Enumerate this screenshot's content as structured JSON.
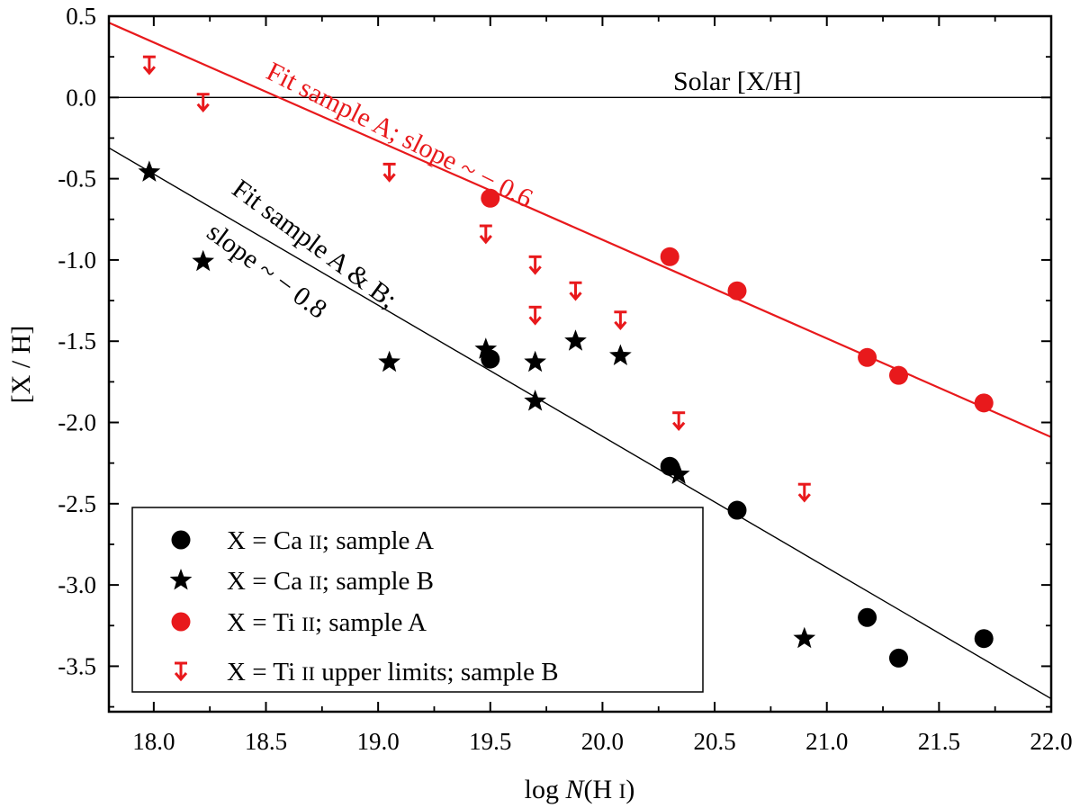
{
  "chart_data": {
    "type": "scatter",
    "xlabel": {
      "prefix": "log ",
      "italic": "N",
      "suffix": "(H ",
      "roman": "I",
      "close": ")"
    },
    "ylabel": "[X / H]",
    "xlim": [
      17.8,
      22.0
    ],
    "ylim": [
      -3.78,
      0.5
    ],
    "xticks": [
      18.0,
      18.5,
      19.0,
      19.5,
      20.0,
      20.5,
      21.0,
      21.5,
      22.0
    ],
    "xtick_labels": [
      "18.0",
      "18.5",
      "19.0",
      "19.5",
      "20.0",
      "20.5",
      "21.0",
      "21.5",
      "22.0"
    ],
    "yticks": [
      0.5,
      0.0,
      -0.5,
      -1.0,
      -1.5,
      -2.0,
      -2.5,
      -3.0,
      -3.5
    ],
    "ytick_labels": [
      "0.5",
      "0.0",
      "-0.5",
      "-1.0",
      "-1.5",
      "-2.0",
      "-2.5",
      "-3.0",
      "-3.5"
    ],
    "colors": {
      "black": "#000000",
      "red": "#e8191c"
    },
    "series": [
      {
        "name": "X = Ca II; sample A",
        "marker": "circle",
        "color": "#000000",
        "points": [
          [
            19.5,
            -1.61
          ],
          [
            20.3,
            -2.27
          ],
          [
            20.6,
            -2.54
          ],
          [
            21.18,
            -3.2
          ],
          [
            21.32,
            -3.45
          ],
          [
            21.7,
            -3.33
          ]
        ]
      },
      {
        "name": "X = Ca II; sample B",
        "marker": "star",
        "color": "#000000",
        "points": [
          [
            17.98,
            -0.46
          ],
          [
            18.22,
            -1.01
          ],
          [
            19.05,
            -1.63
          ],
          [
            19.48,
            -1.55
          ],
          [
            19.7,
            -1.63
          ],
          [
            19.7,
            -1.87
          ],
          [
            19.88,
            -1.5
          ],
          [
            20.08,
            -1.59
          ],
          [
            20.34,
            -2.32
          ],
          [
            20.9,
            -3.33
          ]
        ]
      },
      {
        "name": "X = Ti II; sample A",
        "marker": "circle",
        "color": "#e8191c",
        "points": [
          [
            19.5,
            -0.62
          ],
          [
            20.3,
            -0.98
          ],
          [
            20.6,
            -1.19
          ],
          [
            21.18,
            -1.6
          ],
          [
            21.32,
            -1.71
          ],
          [
            21.7,
            -1.88
          ]
        ]
      },
      {
        "name": "X = Ti II upper limits; sample B",
        "marker": "upper-limit-arrow",
        "color": "#e8191c",
        "points": [
          [
            17.98,
            0.2
          ],
          [
            18.22,
            -0.03
          ],
          [
            19.05,
            -0.46
          ],
          [
            19.48,
            -0.84
          ],
          [
            19.7,
            -1.03
          ],
          [
            19.7,
            -1.34
          ],
          [
            19.88,
            -1.19
          ],
          [
            20.08,
            -1.37
          ],
          [
            20.34,
            -1.99
          ],
          [
            20.9,
            -2.43
          ]
        ]
      }
    ],
    "lines": [
      {
        "name": "solar-line",
        "label": "Solar [X/H]",
        "color": "#000000",
        "x": [
          17.8,
          22.0
        ],
        "y": [
          0.0,
          0.0
        ]
      },
      {
        "name": "fit-ti-line",
        "color": "#e8191c",
        "x": [
          17.8,
          22.0
        ],
        "y": [
          0.46,
          -2.09
        ]
      },
      {
        "name": "fit-ca-line",
        "color": "#000000",
        "x": [
          17.8,
          22.0
        ],
        "y": [
          -0.31,
          -3.7
        ]
      }
    ],
    "annotations": {
      "solar": "Solar [X/H]",
      "fit_a": "Fit sample A; slope ~ − 0.6",
      "fit_ab_1": "Fit sample A & B;",
      "fit_ab_2": "slope ~ − 0.8"
    },
    "legend": {
      "position": "bottom-left",
      "entries": [
        {
          "marker": "circle",
          "color": "#000000",
          "pre": "X = Ca ",
          "sc": "II",
          "post": "; sample A"
        },
        {
          "marker": "star",
          "color": "#000000",
          "pre": "X = Ca ",
          "sc": "II",
          "post": "; sample B"
        },
        {
          "marker": "circle",
          "color": "#e8191c",
          "pre": "X = Ti ",
          "sc": "II",
          "post": "; sample A"
        },
        {
          "marker": "upper-limit-arrow",
          "color": "#e8191c",
          "pre": "X = Ti ",
          "sc": "II",
          "post": " upper limits; sample B"
        }
      ]
    }
  }
}
